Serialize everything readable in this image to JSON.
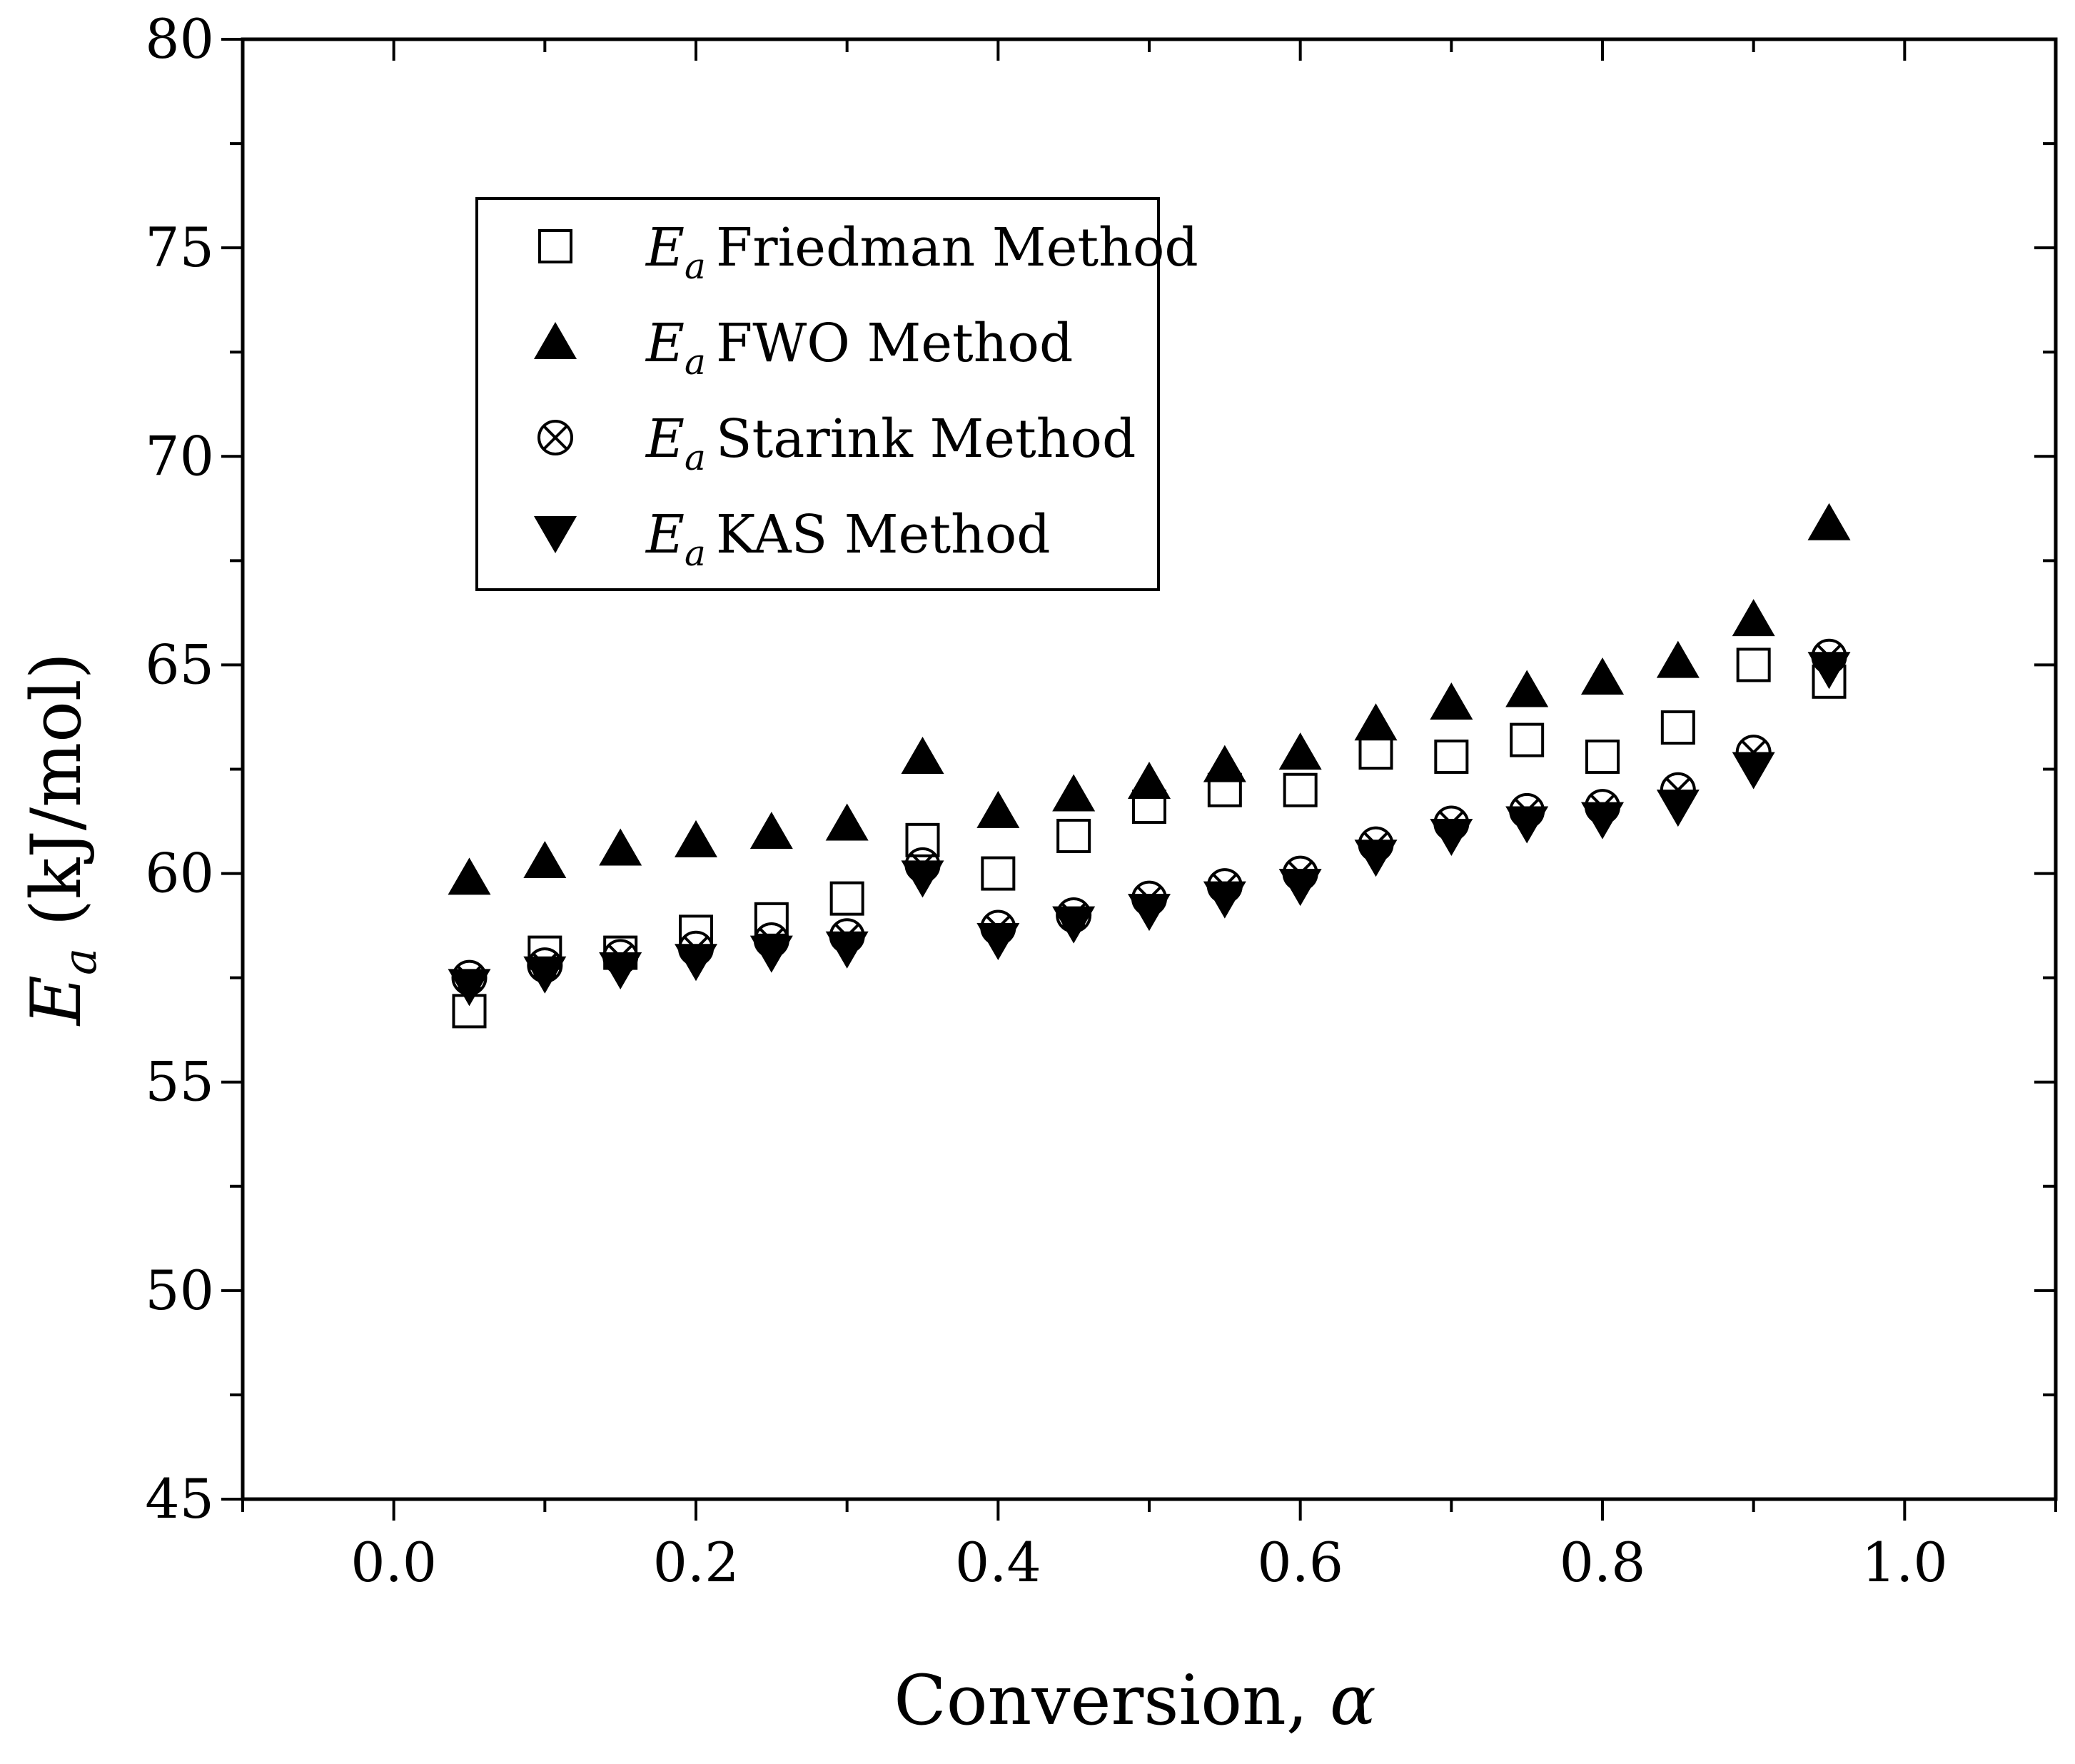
{
  "chart_data": {
    "type": "scatter",
    "xlabel_main": "Conversion, ",
    "xlabel_symbol": "α",
    "ylabel_symbol": "E",
    "ylabel_subscript": "a",
    "ylabel_unit": " (kJ/mol)",
    "xlim": [
      -0.1,
      1.1
    ],
    "ylim": [
      45,
      80
    ],
    "x_ticks": [
      0.0,
      0.2,
      0.4,
      0.6,
      0.8,
      1.0
    ],
    "x_tick_labels": [
      "0.0",
      "0.2",
      "0.4",
      "0.6",
      "0.8",
      "1.0"
    ],
    "y_ticks": [
      45,
      50,
      55,
      60,
      65,
      70,
      75,
      80
    ],
    "y_tick_labels": [
      "45",
      "50",
      "55",
      "60",
      "65",
      "70",
      "75",
      "80"
    ],
    "legend_position": "upper-left",
    "x": [
      0.05,
      0.1,
      0.15,
      0.2,
      0.25,
      0.3,
      0.35,
      0.4,
      0.45,
      0.5,
      0.55,
      0.6,
      0.65,
      0.7,
      0.75,
      0.8,
      0.85,
      0.9,
      0.95
    ],
    "series": [
      {
        "name": "Friedman Method",
        "legend_symbol": "E",
        "legend_subscript": "a",
        "marker": "open-square",
        "values": [
          56.7,
          58.1,
          58.1,
          58.6,
          58.9,
          59.4,
          60.8,
          60.0,
          60.9,
          61.6,
          62.0,
          62.0,
          62.9,
          62.8,
          63.2,
          62.8,
          63.5,
          65.0,
          64.6
        ]
      },
      {
        "name": "FWO Method",
        "legend_symbol": "E",
        "legend_subscript": "a",
        "marker": "filled-triangle-up",
        "values": [
          59.9,
          60.3,
          60.6,
          60.8,
          61.0,
          61.2,
          62.8,
          61.5,
          61.9,
          62.2,
          62.6,
          62.9,
          63.6,
          64.1,
          64.4,
          64.7,
          65.1,
          66.1,
          68.4
        ]
      },
      {
        "name": "Starink Method",
        "legend_symbol": "E",
        "legend_subscript": "a",
        "marker": "circle-x",
        "values": [
          57.5,
          57.8,
          58.0,
          58.2,
          58.4,
          58.5,
          60.2,
          58.7,
          59.0,
          59.4,
          59.7,
          60.0,
          60.7,
          61.2,
          61.5,
          61.6,
          62.0,
          62.9,
          65.2
        ]
      },
      {
        "name": "KAS Method",
        "legend_symbol": "E",
        "legend_subscript": "a",
        "marker": "filled-triangle-down",
        "values": [
          57.3,
          57.6,
          57.7,
          57.9,
          58.1,
          58.2,
          59.9,
          58.4,
          58.8,
          59.1,
          59.4,
          59.7,
          60.4,
          60.9,
          61.2,
          61.3,
          61.6,
          62.5,
          64.9
        ]
      }
    ]
  }
}
